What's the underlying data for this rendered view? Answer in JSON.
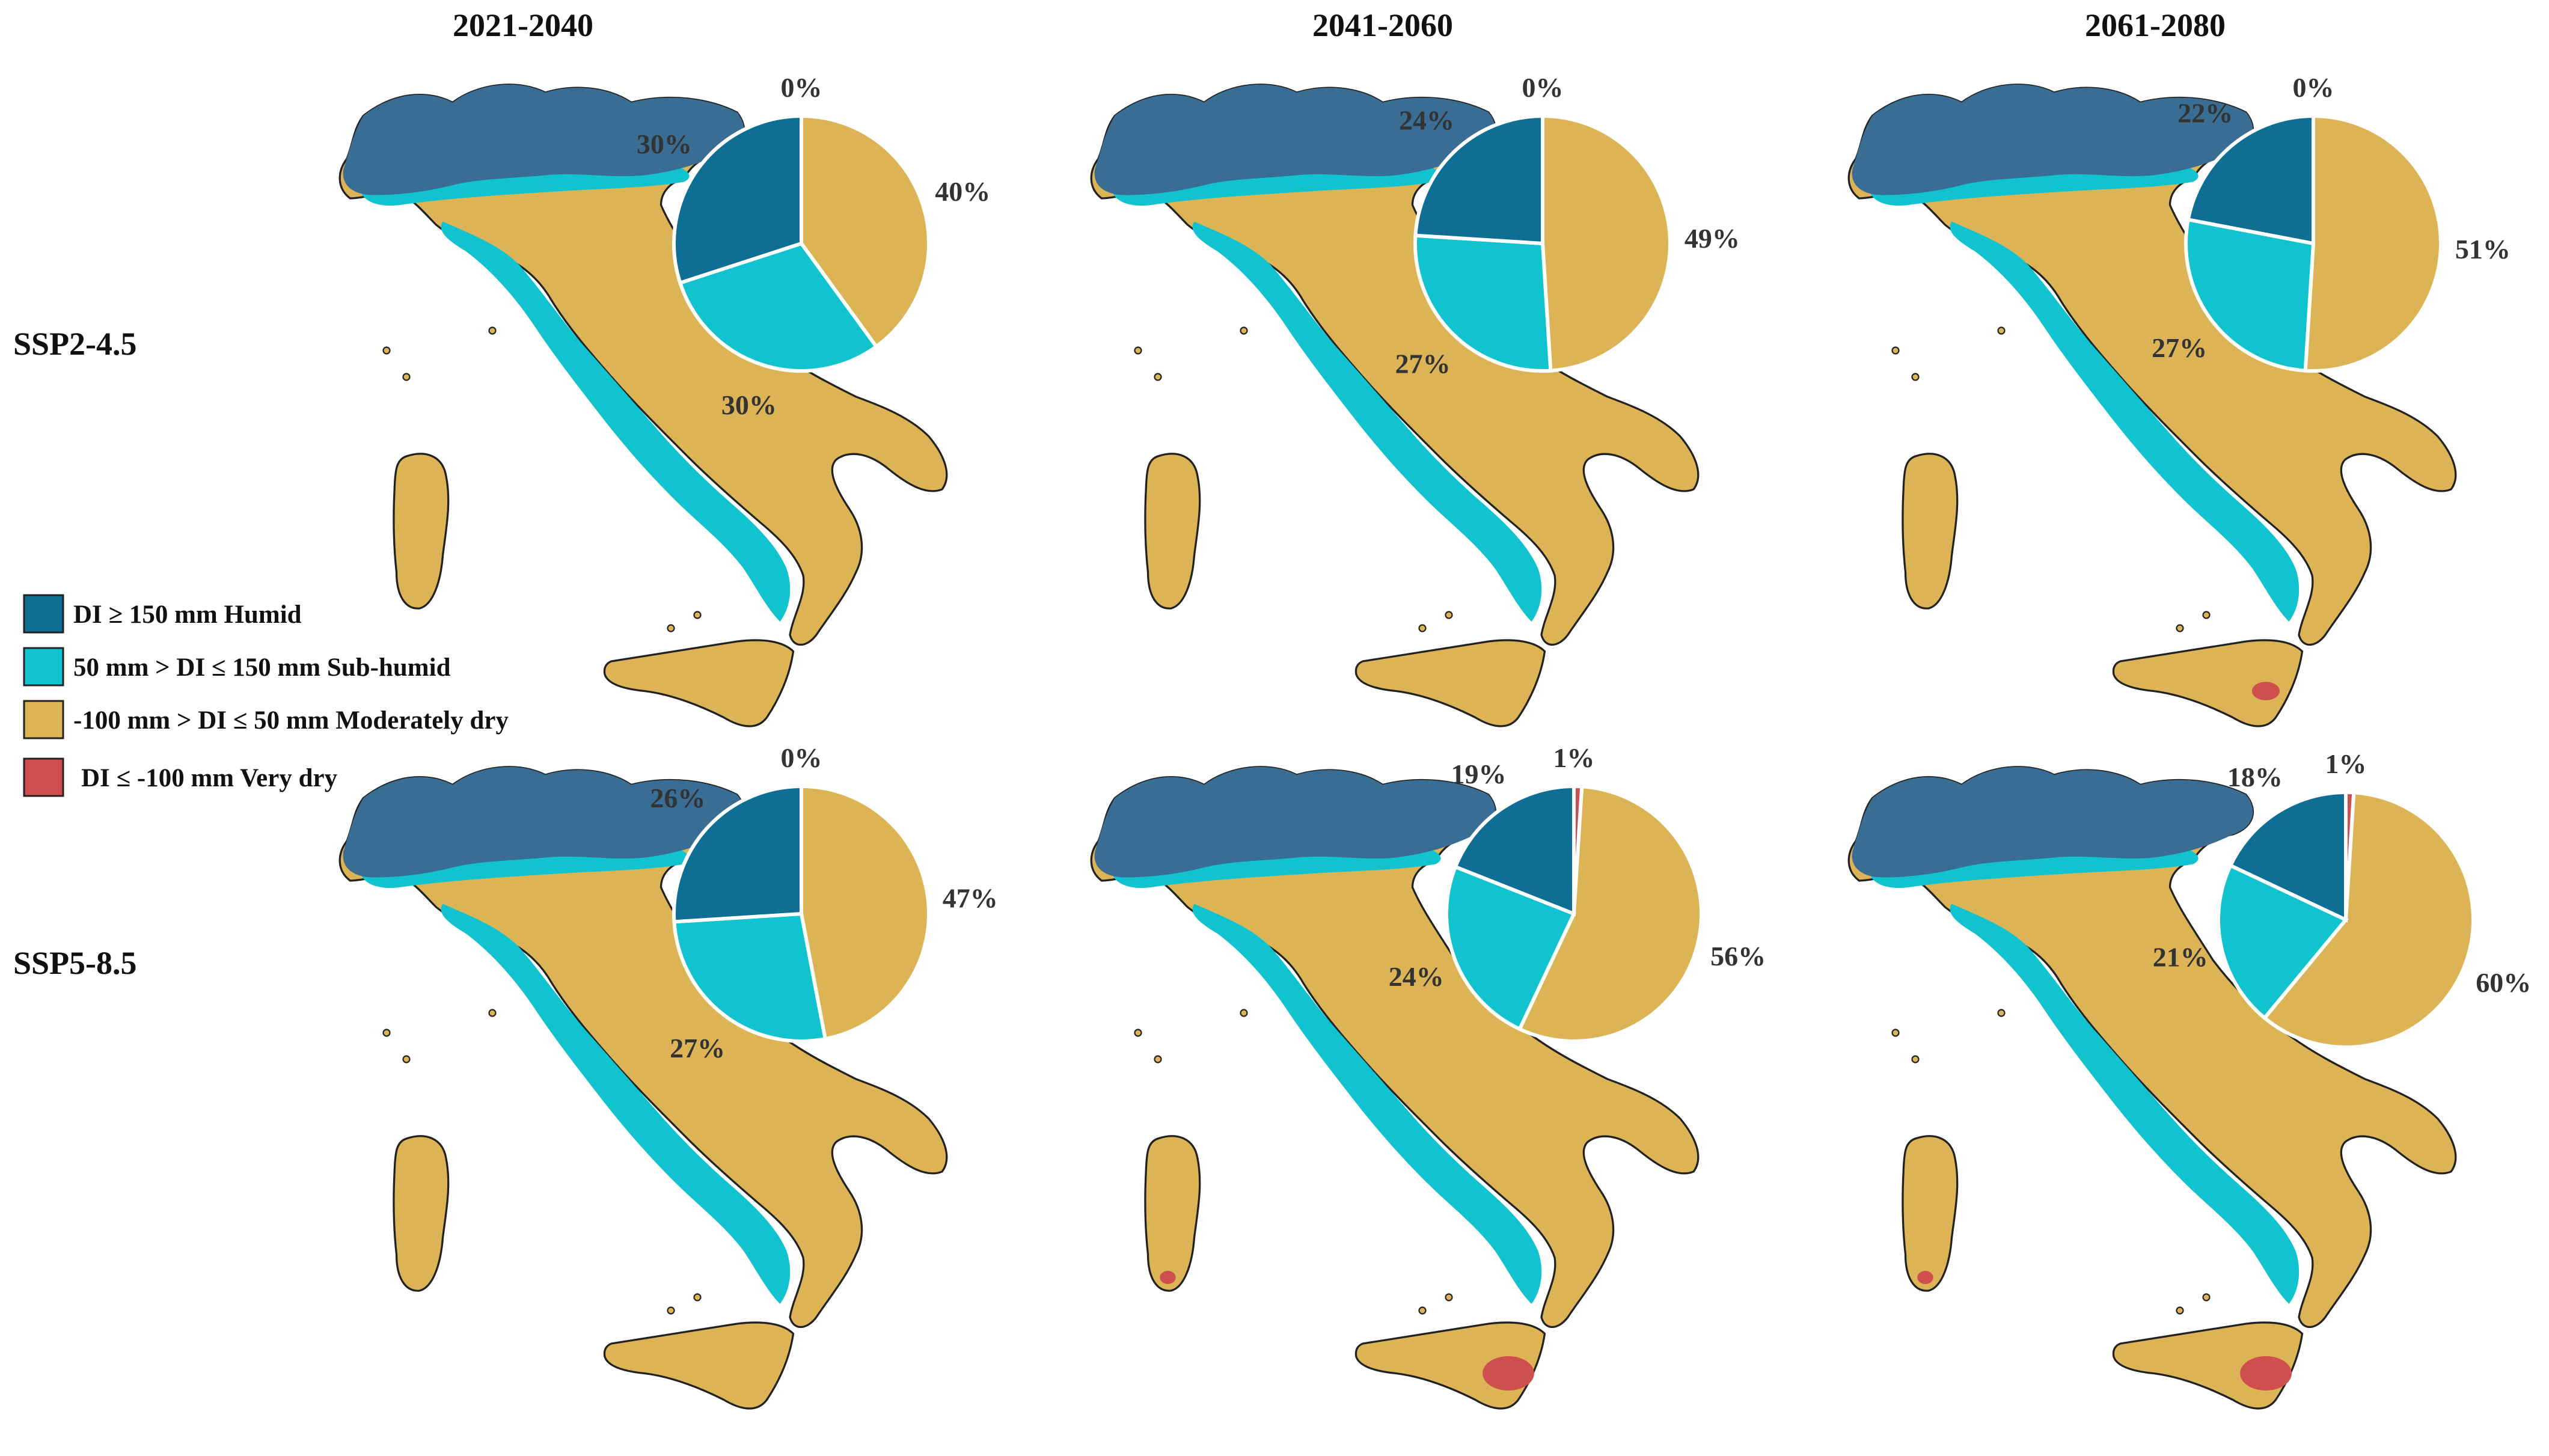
{
  "periods": [
    "2021-2040",
    "2041-2060",
    "2061-2080"
  ],
  "scenarios": [
    "SSP2-4.5",
    "SSP5-8.5"
  ],
  "colors": {
    "humid": "#0f6e94",
    "subhumid": "#11c3cf",
    "moderately_dry": "#dcb455",
    "very_dry": "#cf4f4f",
    "relief_dark": "#3a6d93"
  },
  "legend": [
    {
      "label": "DI ≥ 150 mm Humid",
      "color_key": "humid"
    },
    {
      "label": "50 mm > DI ≤ 150 mm Sub-humid",
      "color_key": "subhumid"
    },
    {
      "label": "-100 mm > DI ≤ 50 mm Moderately dry",
      "color_key": "moderately_dry"
    },
    {
      "label": "DI ≤ -100 mm Very dry",
      "color_key": "very_dry"
    }
  ],
  "panels": [
    {
      "scenario": "SSP2-4.5",
      "period": "2021-2040",
      "values": {
        "very_dry": 0,
        "moderately_dry": 40,
        "subhumid": 30,
        "humid": 30
      },
      "labels": {
        "very_dry": "0%",
        "moderately_dry": "40%",
        "subhumid": "30%",
        "humid": "30%"
      }
    },
    {
      "scenario": "SSP2-4.5",
      "period": "2041-2060",
      "values": {
        "very_dry": 0,
        "moderately_dry": 49,
        "subhumid": 27,
        "humid": 24
      },
      "labels": {
        "very_dry": "0%",
        "moderately_dry": "49%",
        "subhumid": "27%",
        "humid": "24%"
      }
    },
    {
      "scenario": "SSP2-4.5",
      "period": "2061-2080",
      "values": {
        "very_dry": 0,
        "moderately_dry": 51,
        "subhumid": 27,
        "humid": 22
      },
      "labels": {
        "very_dry": "0%",
        "moderately_dry": "51%",
        "subhumid": "27%",
        "humid": "22%"
      }
    },
    {
      "scenario": "SSP5-8.5",
      "period": "2021-2040",
      "values": {
        "very_dry": 0,
        "moderately_dry": 47,
        "subhumid": 27,
        "humid": 26
      },
      "labels": {
        "very_dry": "0%",
        "moderately_dry": "47%",
        "subhumid": "27%",
        "humid": "26%"
      }
    },
    {
      "scenario": "SSP5-8.5",
      "period": "2041-2060",
      "values": {
        "very_dry": 1,
        "moderately_dry": 56,
        "subhumid": 24,
        "humid": 19
      },
      "labels": {
        "very_dry": "1%",
        "moderately_dry": "56%",
        "subhumid": "24%",
        "humid": "19%"
      }
    },
    {
      "scenario": "SSP5-8.5",
      "period": "2061-2080",
      "values": {
        "very_dry": 1,
        "moderately_dry": 60,
        "subhumid": 21,
        "humid": 18
      },
      "labels": {
        "very_dry": "1%",
        "moderately_dry": "60%",
        "subhumid": "21%",
        "humid": "18%"
      }
    }
  ]
}
